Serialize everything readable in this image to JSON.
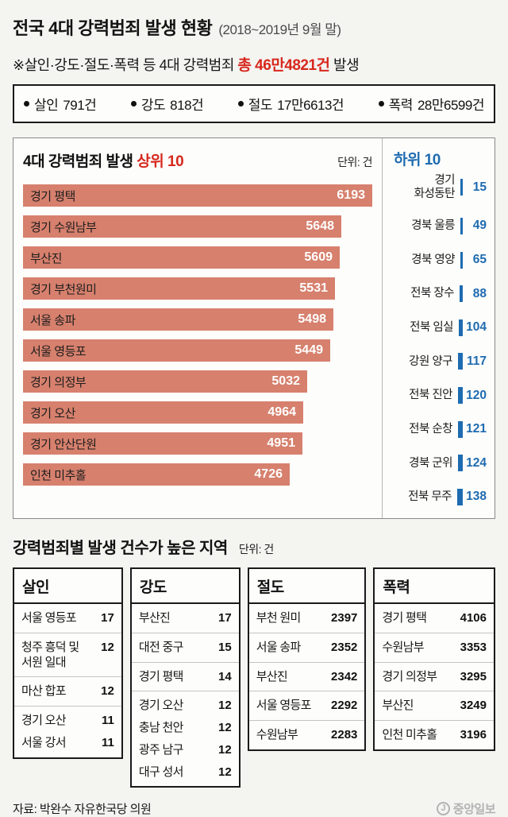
{
  "page": {
    "title": "전국 4대 강력범죄 발생 현황",
    "title_period": "(2018~2019년 9월 말)",
    "note_prefix": "※살인·강도·절도·폭력 등 4대 강력범죄 ",
    "note_highlight": "총 46만4821건",
    "note_suffix": " 발생"
  },
  "summary_stats": [
    {
      "label": "살인",
      "count": "791건"
    },
    {
      "label": "강도",
      "count": "818건"
    },
    {
      "label": "절도",
      "count": "17만6613건"
    },
    {
      "label": "폭력",
      "count": "28만6599건"
    }
  ],
  "chart_header": {
    "title_prefix": "4대 강력범죄 발생 ",
    "title_highlight": "상위 10",
    "unit": "단위: 건",
    "low_title": "하위 10"
  },
  "chart_data": [
    {
      "type": "bar",
      "orientation": "horizontal",
      "title": "4대 강력범죄 발생 상위 10",
      "unit": "건",
      "bar_color": "#d6806d",
      "xlim": [
        0,
        6193
      ],
      "categories": [
        "경기 평택",
        "경기 수원남부",
        "부산진",
        "경기 부천원미",
        "서울 송파",
        "서울 영등포",
        "경기 의정부",
        "경기 오산",
        "경기 안산단원",
        "인천 미추홀"
      ],
      "values": [
        6193,
        5648,
        5609,
        5531,
        5498,
        5449,
        5032,
        4964,
        4951,
        4726
      ]
    },
    {
      "type": "bar",
      "orientation": "horizontal",
      "title": "하위 10",
      "unit": "건",
      "bar_color": "#1e6bb0",
      "xlim": [
        0,
        138
      ],
      "categories": [
        "경기\n화성동탄",
        "경북 울릉",
        "경북 영양",
        "전북 장수",
        "전북 임실",
        "강원 양구",
        "전북 진안",
        "전북 순창",
        "경북 군위",
        "전북 무주"
      ],
      "values": [
        15,
        49,
        65,
        88,
        104,
        117,
        120,
        121,
        124,
        138
      ]
    }
  ],
  "section2": {
    "title": "강력범죄별 발생 건수가 높은 지역",
    "unit": "단위: 건"
  },
  "category_boxes": [
    {
      "title": "살인",
      "rows": [
        {
          "name": "서울 영등포",
          "value": "17",
          "grouped": false
        },
        {
          "name": "청주 흥덕 및\n서원 일대",
          "value": "12",
          "grouped": false
        },
        {
          "name": "마산 합포",
          "value": "12",
          "grouped": false
        },
        {
          "name": "경기 오산",
          "value": "11",
          "grouped": false
        },
        {
          "name": "서울 강서",
          "value": "11",
          "grouped": true
        }
      ]
    },
    {
      "title": "강도",
      "rows": [
        {
          "name": "부산진",
          "value": "17",
          "grouped": false
        },
        {
          "name": "대전 중구",
          "value": "15",
          "grouped": false
        },
        {
          "name": "경기 평택",
          "value": "14",
          "grouped": false
        },
        {
          "name": "경기 오산",
          "value": "12",
          "grouped": false
        },
        {
          "name": "충남 천안",
          "value": "12",
          "grouped": true
        },
        {
          "name": "광주 남구",
          "value": "12",
          "grouped": true
        },
        {
          "name": "대구 성서",
          "value": "12",
          "grouped": true
        }
      ]
    },
    {
      "title": "절도",
      "rows": [
        {
          "name": "부천 원미",
          "value": "2397",
          "grouped": false
        },
        {
          "name": "서울 송파",
          "value": "2352",
          "grouped": false
        },
        {
          "name": "부산진",
          "value": "2342",
          "grouped": false
        },
        {
          "name": "서울 영등포",
          "value": "2292",
          "grouped": false
        },
        {
          "name": "수원남부",
          "value": "2283",
          "grouped": false
        }
      ]
    },
    {
      "title": "폭력",
      "rows": [
        {
          "name": "경기 평택",
          "value": "4106",
          "grouped": false
        },
        {
          "name": "수원남부",
          "value": "3353",
          "grouped": false
        },
        {
          "name": "경기 의정부",
          "value": "3295",
          "grouped": false
        },
        {
          "name": "부산진",
          "value": "3249",
          "grouped": false
        },
        {
          "name": "인천 미추홀",
          "value": "3196",
          "grouped": false
        }
      ]
    }
  ],
  "footer": {
    "source": "자료: 박완수 자유한국당 의원",
    "logo_mark": "J",
    "logo_text": "중앙일보"
  }
}
